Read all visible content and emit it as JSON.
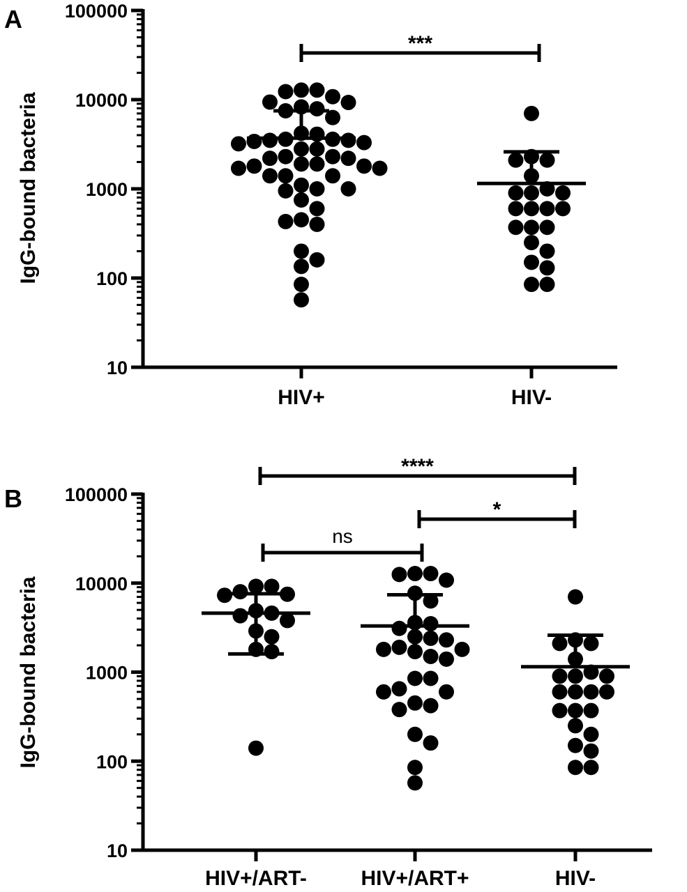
{
  "chart_data": [
    {
      "panel": "A",
      "type": "scatter",
      "ylabel": "IgG-bound bacteria",
      "yscale": "log",
      "ylim": [
        10,
        100000
      ],
      "yticks": [
        "10",
        "100",
        "1000",
        "10000",
        "100000"
      ],
      "categories": [
        "HIV+",
        "HIV-"
      ],
      "series": [
        {
          "values": [
            12800,
            12800,
            12300,
            10800,
            9400,
            9300,
            8300,
            7900,
            7500,
            6300,
            4200,
            4100,
            3600,
            3600,
            3500,
            3500,
            3400,
            3300,
            3200,
            2800,
            2800,
            2300,
            2300,
            2200,
            2200,
            1900,
            1900,
            1800,
            1800,
            1700,
            1700,
            1400,
            1400,
            1400,
            1100,
            1000,
            1000,
            950,
            750,
            600,
            450,
            400,
            430,
            200,
            160,
            135,
            85,
            57
          ],
          "mean": 3700,
          "error_upper": 7500,
          "error_lower": 3700
        },
        {
          "values": [
            7000,
            2300,
            2100,
            2100,
            1400,
            1000,
            900,
            900,
            900,
            600,
            600,
            600,
            600,
            370,
            370,
            370,
            250,
            200,
            150,
            130,
            85,
            85
          ],
          "mean": 1150,
          "error_upper": 2600,
          "error_lower": 1150
        }
      ],
      "comparisons": [
        {
          "from": "HIV+",
          "to": "HIV-",
          "label": "***"
        }
      ]
    },
    {
      "panel": "B",
      "type": "scatter",
      "ylabel": "IgG-bound bacteria",
      "yscale": "log",
      "ylim": [
        10,
        100000
      ],
      "yticks": [
        "10",
        "100",
        "1000",
        "10000",
        "100000"
      ],
      "categories": [
        "HIV+/ART-",
        "HIV+/ART+",
        "HIV-"
      ],
      "series": [
        {
          "values": [
            9200,
            9200,
            8000,
            7500,
            7300,
            4900,
            4600,
            4300,
            3800,
            2900,
            2500,
            1800,
            1700,
            140
          ],
          "mean": 4600,
          "error_upper": 7600,
          "error_lower": 1600
        },
        {
          "values": [
            12800,
            12800,
            12500,
            10800,
            7700,
            6300,
            3600,
            3500,
            3100,
            2500,
            2400,
            2300,
            1900,
            1800,
            1800,
            1700,
            1500,
            1400,
            850,
            850,
            650,
            600,
            600,
            450,
            420,
            380,
            200,
            160,
            85,
            57
          ],
          "mean": 3300,
          "error_upper": 7400,
          "error_lower": 3300
        },
        {
          "values": [
            7000,
            2300,
            2100,
            2100,
            1400,
            1000,
            900,
            900,
            900,
            600,
            600,
            600,
            600,
            370,
            370,
            370,
            250,
            200,
            150,
            130,
            85,
            85
          ],
          "mean": 1150,
          "error_upper": 2600,
          "error_lower": 1150
        }
      ],
      "comparisons": [
        {
          "from": "HIV+/ART-",
          "to": "HIV-",
          "label": "****"
        },
        {
          "from": "HIV+/ART+",
          "to": "HIV-",
          "label": "*"
        },
        {
          "from": "HIV+/ART-",
          "to": "HIV+/ART+",
          "label": "ns"
        }
      ]
    }
  ]
}
